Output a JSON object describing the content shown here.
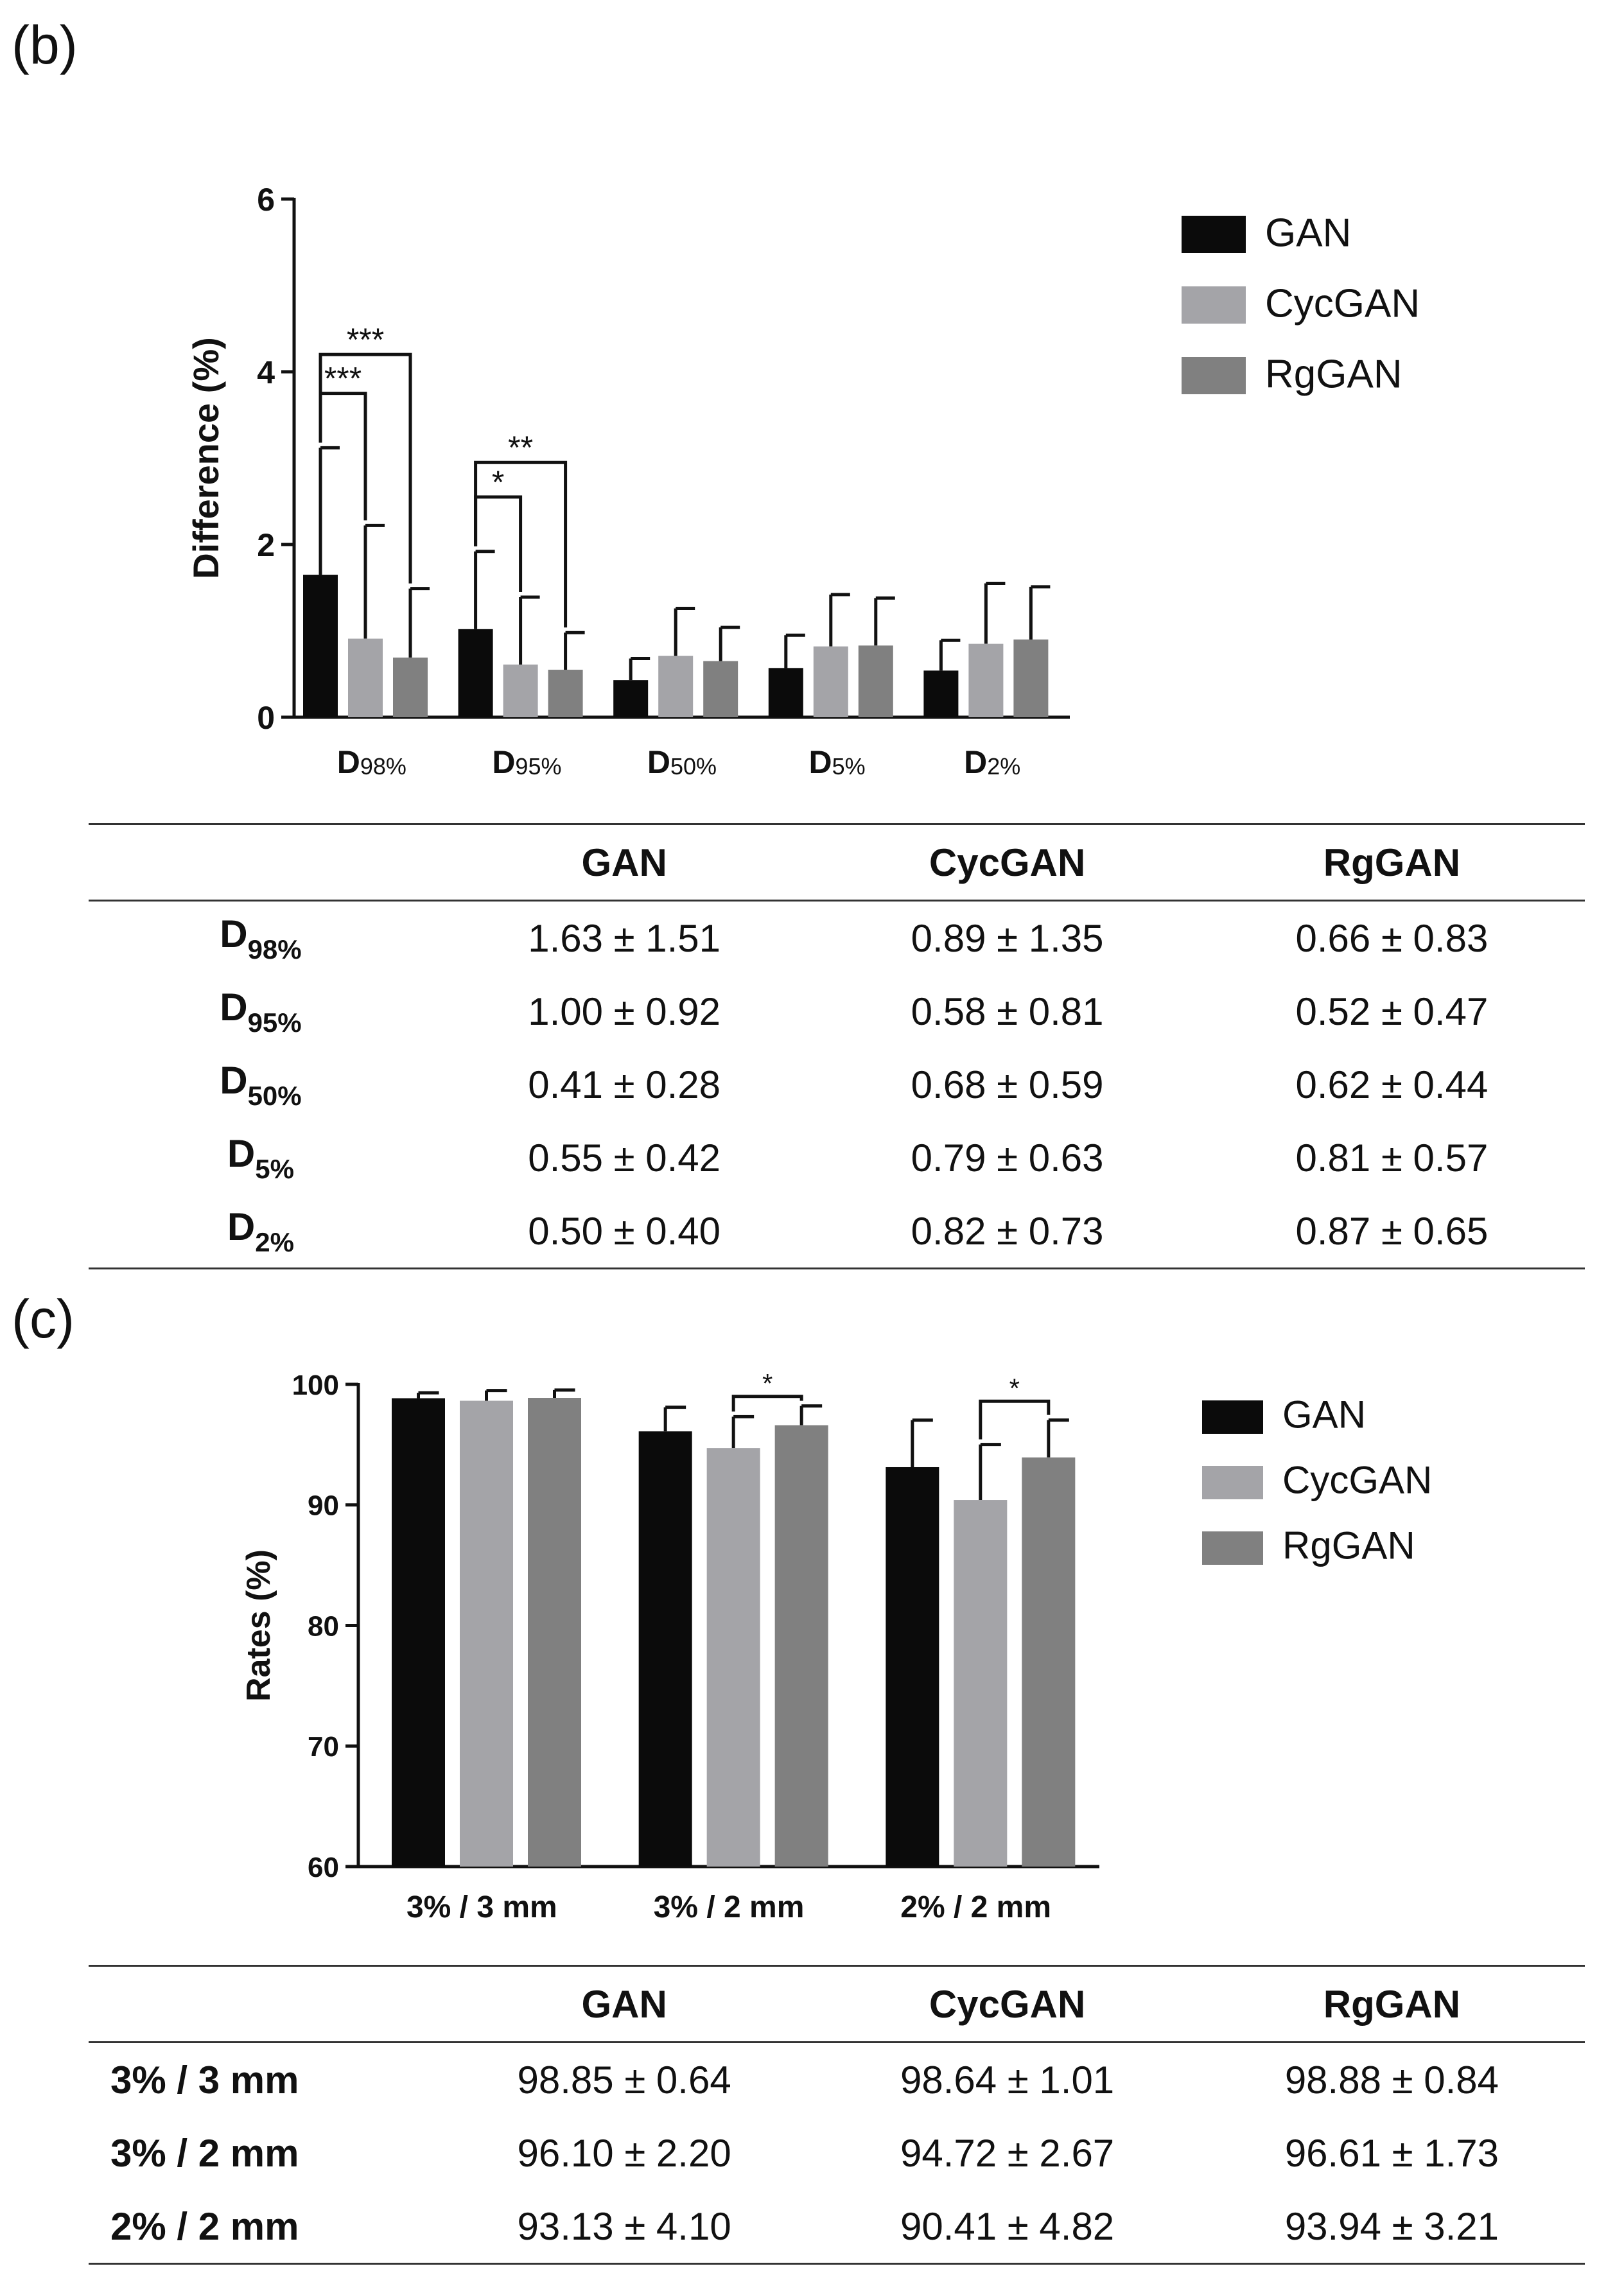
{
  "panels": {
    "b": "(b)",
    "c": "(c)"
  },
  "colors": {
    "GAN": "#0b0b0b",
    "CycGAN": "#a4a4a8",
    "RgGAN": "#808080"
  },
  "chart_data": [
    {
      "id": "b",
      "type": "bar",
      "ylabel": "Difference  (%)",
      "ylim": [
        0,
        6
      ],
      "yticks": [
        0,
        2,
        4,
        6
      ],
      "categories": [
        {
          "main": "D",
          "sub": "98%"
        },
        {
          "main": "D",
          "sub": "95%"
        },
        {
          "main": "D",
          "sub": "50%"
        },
        {
          "main": "D",
          "sub": "5%"
        },
        {
          "main": "D",
          "sub": "2%"
        }
      ],
      "legend": [
        "GAN",
        "CycGAN",
        "RgGAN"
      ],
      "series": [
        {
          "name": "GAN",
          "values": [
            1.65,
            1.02,
            0.43,
            0.57,
            0.54
          ],
          "errors": [
            1.47,
            0.9,
            0.25,
            0.38,
            0.35
          ]
        },
        {
          "name": "CycGAN",
          "values": [
            0.91,
            0.61,
            0.71,
            0.82,
            0.85
          ],
          "errors": [
            1.31,
            0.78,
            0.55,
            0.6,
            0.7
          ]
        },
        {
          "name": "RgGAN",
          "values": [
            0.69,
            0.55,
            0.65,
            0.83,
            0.9
          ],
          "errors": [
            0.8,
            0.43,
            0.39,
            0.55,
            0.61
          ]
        }
      ],
      "significance": [
        {
          "group": 0,
          "from": 0,
          "to": 2,
          "level": 4.2,
          "label": "***"
        },
        {
          "group": 0,
          "from": 0,
          "to": 1,
          "level": 3.75,
          "label": "***"
        },
        {
          "group": 1,
          "from": 0,
          "to": 2,
          "level": 2.95,
          "label": "**"
        },
        {
          "group": 1,
          "from": 0,
          "to": 1,
          "level": 2.55,
          "label": "*"
        }
      ]
    },
    {
      "id": "c",
      "type": "bar",
      "ylabel": "Rates  (%)",
      "ylim": [
        60,
        100
      ],
      "yticks": [
        60,
        70,
        80,
        90,
        100
      ],
      "categories": [
        "3% / 3 mm",
        "3% / 2 mm",
        "2% / 2 mm"
      ],
      "legend": [
        "GAN",
        "CycGAN",
        "RgGAN"
      ],
      "series": [
        {
          "name": "GAN",
          "values": [
            98.85,
            96.1,
            93.13
          ],
          "errors": [
            0.45,
            2.0,
            3.9
          ]
        },
        {
          "name": "CycGAN",
          "values": [
            98.64,
            94.72,
            90.41
          ],
          "errors": [
            0.85,
            2.6,
            4.6
          ]
        },
        {
          "name": "RgGAN",
          "values": [
            98.88,
            96.61,
            93.94
          ],
          "errors": [
            0.65,
            1.6,
            3.1
          ]
        }
      ],
      "significance": [
        {
          "group": 1,
          "from": 1,
          "to": 2,
          "level": 99.0,
          "label": "*"
        },
        {
          "group": 2,
          "from": 1,
          "to": 2,
          "level": 98.6,
          "label": "*"
        }
      ]
    }
  ],
  "table_b": {
    "headers": [
      "",
      "GAN",
      "CycGAN",
      "RgGAN"
    ],
    "rows": [
      {
        "label_main": "D",
        "label_sub": "98%",
        "cells": [
          "1.63 ± 1.51",
          "0.89 ± 1.35",
          "0.66 ± 0.83"
        ]
      },
      {
        "label_main": "D",
        "label_sub": "95%",
        "cells": [
          "1.00 ± 0.92",
          "0.58 ± 0.81",
          "0.52 ± 0.47"
        ]
      },
      {
        "label_main": "D",
        "label_sub": "50%",
        "cells": [
          "0.41 ± 0.28",
          "0.68 ± 0.59",
          "0.62 ± 0.44"
        ]
      },
      {
        "label_main": "D",
        "label_sub": "5%",
        "cells": [
          "0.55 ± 0.42",
          "0.79 ± 0.63",
          "0.81 ± 0.57"
        ]
      },
      {
        "label_main": "D",
        "label_sub": "2%",
        "cells": [
          "0.50 ± 0.40",
          "0.82 ± 0.73",
          "0.87 ± 0.65"
        ]
      }
    ]
  },
  "table_c": {
    "headers": [
      "",
      "GAN",
      "CycGAN",
      "RgGAN"
    ],
    "rows": [
      {
        "label": "3% / 3 mm",
        "cells": [
          "98.85 ± 0.64",
          "98.64 ± 1.01",
          "98.88 ± 0.84"
        ]
      },
      {
        "label": "3% / 2 mm",
        "cells": [
          "96.10 ± 2.20",
          "94.72 ± 2.67",
          "96.61 ± 1.73"
        ]
      },
      {
        "label": "2% / 2 mm",
        "cells": [
          "93.13 ± 4.10",
          "90.41 ± 4.82",
          "93.94 ± 3.21"
        ]
      }
    ]
  }
}
